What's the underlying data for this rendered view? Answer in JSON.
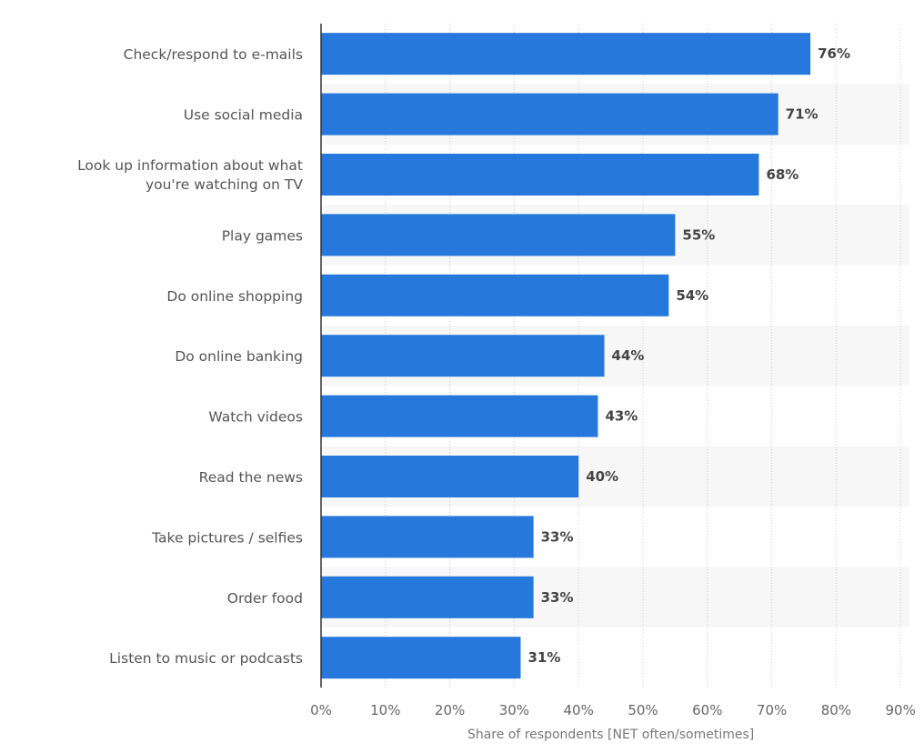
{
  "chart_data": {
    "type": "bar",
    "orientation": "horizontal",
    "categories": [
      "Check/respond to e-mails",
      "Use social media",
      "Look up information about what you're watching on TV",
      "Play games",
      "Do online shopping",
      "Do online banking",
      "Watch videos",
      "Read the news",
      "Take pictures / selfies",
      "Order food",
      "Listen to music or podcasts"
    ],
    "values": [
      76,
      71,
      68,
      55,
      54,
      44,
      43,
      40,
      33,
      33,
      31
    ],
    "value_labels": [
      "76%",
      "71%",
      "68%",
      "55%",
      "54%",
      "44%",
      "43%",
      "40%",
      "33%",
      "33%",
      "31%"
    ],
    "xlabel": "Share of respondents [NET often/sometimes]",
    "ylabel": "",
    "xlim": [
      0,
      90
    ],
    "x_ticks": [
      "0%",
      "10%",
      "20%",
      "30%",
      "40%",
      "50%",
      "60%",
      "70%",
      "80%",
      "90%"
    ],
    "grid": true,
    "legend": "none",
    "colors": {
      "bar": "#2678dc",
      "band": "#f7f7f7",
      "grid": "#cccccc",
      "axis": "#333333"
    }
  }
}
